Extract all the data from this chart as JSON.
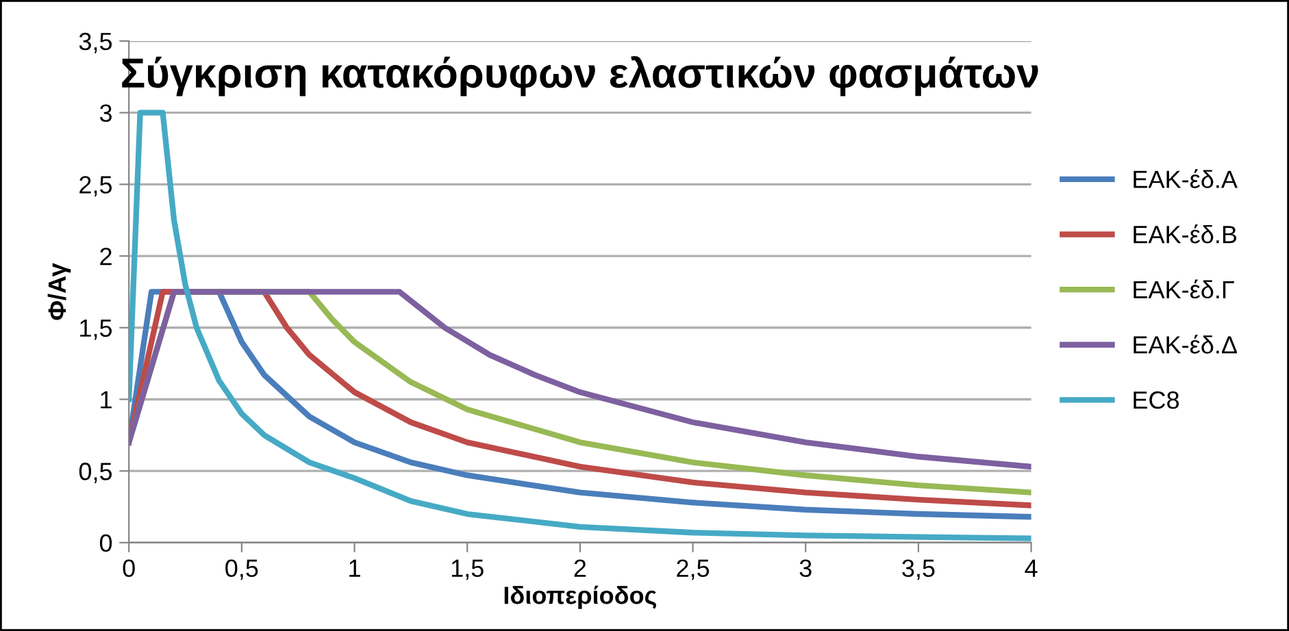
{
  "chart_data": {
    "type": "line",
    "title": "Σύγκριση κατακόρυφων ελαστικών φασμάτων",
    "xlabel": "Ιδιοπερίοδος",
    "ylabel": "Φ/Αγ",
    "xlim": [
      0,
      4
    ],
    "ylim": [
      0,
      3.5
    ],
    "xticks": [
      0,
      {
        "value": 0.5,
        "label": "0,5"
      },
      1,
      {
        "value": 1.5,
        "label": "1,5"
      },
      2,
      {
        "value": 2.5,
        "label": "2,5"
      },
      3,
      {
        "value": 3.5,
        "label": "3,5"
      },
      4
    ],
    "yticks": [
      0,
      {
        "value": 0.5,
        "label": "0,5"
      },
      1,
      {
        "value": 1.5,
        "label": "1,5"
      },
      2,
      {
        "value": 2.5,
        "label": "2,5"
      },
      3,
      {
        "value": 3.5,
        "label": "3,5"
      }
    ],
    "grid": "y",
    "legend": "right",
    "marker": "none",
    "line_style": "solid",
    "series": [
      {
        "name": "ΕΑΚ-έδ.Α",
        "color": "#4a7ebb",
        "x": [
          0,
          0.1,
          0.4,
          0.5,
          0.6,
          0.8,
          1,
          1.25,
          1.5,
          2,
          2.5,
          3,
          3.5,
          4
        ],
        "values": [
          0.7,
          1.75,
          1.75,
          1.4,
          1.17,
          0.88,
          0.7,
          0.56,
          0.47,
          0.35,
          0.28,
          0.23,
          0.2,
          0.18
        ]
      },
      {
        "name": "ΕΑΚ-έδ.Β",
        "color": "#be4b48",
        "x": [
          0,
          0.15,
          0.6,
          0.7,
          0.8,
          1,
          1.25,
          1.5,
          2,
          2.5,
          3,
          3.5,
          4
        ],
        "values": [
          0.7,
          1.75,
          1.75,
          1.5,
          1.31,
          1.05,
          0.84,
          0.7,
          0.53,
          0.42,
          0.35,
          0.3,
          0.26
        ]
      },
      {
        "name": "ΕΑΚ-έδ.Γ",
        "color": "#98b954",
        "x": [
          0,
          0.2,
          0.8,
          0.9,
          1,
          1.25,
          1.5,
          2,
          2.5,
          3,
          3.5,
          4
        ],
        "values": [
          0.7,
          1.75,
          1.75,
          1.56,
          1.4,
          1.12,
          0.93,
          0.7,
          0.56,
          0.47,
          0.4,
          0.35
        ]
      },
      {
        "name": "ΕΑΚ-έδ.Δ",
        "color": "#7d60a0",
        "x": [
          0,
          0.2,
          1.2,
          1.4,
          1.6,
          1.8,
          2,
          2.5,
          3,
          3.5,
          4
        ],
        "values": [
          0.7,
          1.75,
          1.75,
          1.5,
          1.31,
          1.17,
          1.05,
          0.84,
          0.7,
          0.6,
          0.53
        ]
      },
      {
        "name": "EC8",
        "color": "#46aac5",
        "x": [
          0,
          0.05,
          0.15,
          0.2,
          0.25,
          0.3,
          0.4,
          0.5,
          0.6,
          0.8,
          1,
          1.25,
          1.5,
          2,
          2.5,
          3,
          3.5,
          4
        ],
        "values": [
          1,
          3,
          3,
          2.25,
          1.8,
          1.5,
          1.13,
          0.9,
          0.75,
          0.56,
          0.45,
          0.29,
          0.2,
          0.11,
          0.07,
          0.05,
          0.04,
          0.03
        ]
      }
    ]
  }
}
